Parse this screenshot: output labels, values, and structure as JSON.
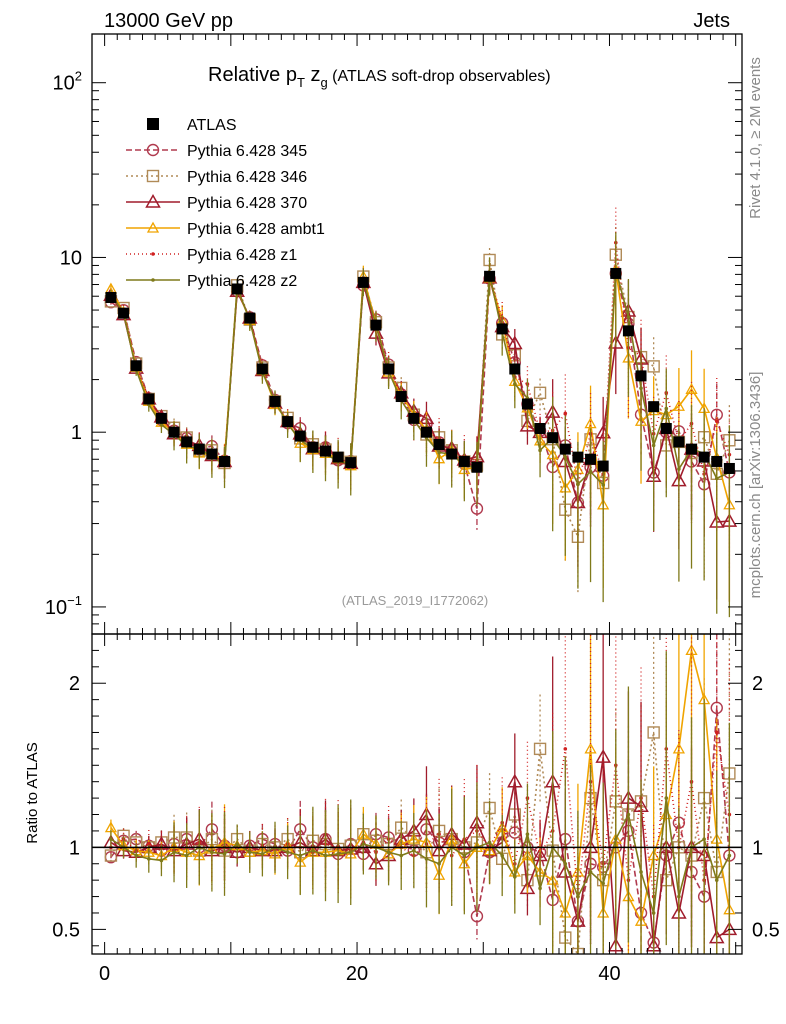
{
  "header": {
    "left": "13000 GeV pp",
    "right": "Jets"
  },
  "side_labels": {
    "top": "Rivet 4.1.0, ≥ 2M events",
    "bottom": "mcplots.cern.ch [arXiv:1306.3436]"
  },
  "chart_data": {
    "type": "line",
    "title": "Relative p_T z_g (ATLAS soft-drop observables)",
    "title_parts": {
      "pre": "Relative p",
      "sub1": "T",
      "mid": " z",
      "sub2": "g",
      "post": " (ATLAS soft-drop observables)"
    },
    "reference": "(ATLAS_2019_I1772062)",
    "x": [
      0.5,
      1.5,
      2.5,
      3.5,
      4.5,
      5.5,
      6.5,
      7.5,
      8.5,
      9.5,
      10.5,
      11.5,
      12.5,
      13.5,
      14.5,
      15.5,
      16.5,
      17.5,
      18.5,
      19.5,
      20.5,
      21.5,
      22.5,
      23.5,
      24.5,
      25.5,
      26.5,
      27.5,
      28.5,
      29.5,
      30.5,
      31.5,
      32.5,
      33.5,
      34.5,
      35.5,
      36.5,
      37.5,
      38.5,
      39.5,
      40.5,
      41.5,
      42.5,
      43.5,
      44.5,
      45.5,
      46.5,
      47.5,
      48.5,
      49.5
    ],
    "xlim": [
      -1,
      50.5
    ],
    "ylim": [
      0.07,
      190
    ],
    "yscale": "log",
    "ratio_ylim": [
      0.35,
      2.3
    ],
    "ratio_ylabel": "Ratio to ATLAS",
    "x_ticks": [
      "0",
      "20",
      "40"
    ],
    "y_ticks": [
      "10−1",
      "1",
      "10",
      "102"
    ],
    "ratio_ticks": [
      "0.5",
      "1",
      "2"
    ],
    "legend_position": "top-left",
    "data_series": {
      "name": "ATLAS",
      "color": "#000000",
      "values": [
        5.9,
        4.8,
        2.4,
        1.55,
        1.2,
        1.0,
        0.88,
        0.8,
        0.75,
        0.68,
        6.6,
        4.5,
        2.3,
        1.5,
        1.15,
        0.95,
        0.82,
        0.78,
        0.72,
        0.67,
        7.2,
        4.1,
        2.3,
        1.6,
        1.2,
        1.0,
        0.85,
        0.75,
        0.68,
        0.63,
        7.8,
        3.9,
        2.3,
        1.45,
        1.05,
        0.93,
        0.8,
        0.72,
        0.7,
        0.64,
        8.1,
        3.8,
        2.1,
        1.4,
        1.05,
        0.88,
        0.8,
        0.72,
        0.68,
        0.62
      ]
    },
    "series": [
      {
        "name": "Pythia 6.428 345",
        "color": "#b03a4e",
        "dash": "6,3",
        "marker": "circle",
        "ratios": [
          0.94,
          1.04,
          1.05,
          1.01,
          0.98,
          1.02,
          1.05,
          1.0,
          1.11,
          1.01,
          0.97,
          1.01,
          1.05,
          1.02,
          0.98,
          1.11,
          1.0,
          1.05,
          0.96,
          1.02,
          0.96,
          1.08,
          1.06,
          1.03,
          0.98,
          1.11,
          1.03,
          1.04,
          0.97,
          0.58,
          0.97,
          1.08,
          1.09,
          1.0,
          0.97,
          0.68,
          1.05,
          0.55,
          0.9,
          0.88,
          1.0,
          1.1,
          0.6,
          0.42,
          0.95,
          1.15,
          0.85,
          0.7,
          1.85,
          0.95
        ]
      },
      {
        "name": "Pythia 6.428 346",
        "color": "#b08a57",
        "dash": "2,3",
        "marker": "square",
        "ratios": [
          0.95,
          1.07,
          1.03,
          1.0,
          1.03,
          1.06,
          1.06,
          0.98,
          1.05,
          0.98,
          1.05,
          0.98,
          1.02,
          1.0,
          1.05,
          0.97,
          1.04,
          1.02,
          0.99,
          1.01,
          1.08,
          1.04,
          1.02,
          1.12,
          1.05,
          0.97,
          1.1,
          1.05,
          1.0,
          1.03,
          1.24,
          0.93,
          1.2,
          0.8,
          1.6,
          0.98,
          0.45,
          0.35,
          1.3,
          0.8,
          1.28,
          1.2,
          1.28,
          1.7,
          0.8,
          1.0,
          0.95,
          1.3,
          0.85,
          1.45
        ]
      },
      {
        "name": "Pythia 6.428 370",
        "color": "#a01c2c",
        "dash": "none",
        "marker": "triangle",
        "ratios": [
          1.03,
          0.98,
          0.97,
          1.0,
          1.02,
          0.98,
          1.02,
          1.05,
          0.98,
          1.0,
          0.97,
          1.0,
          0.98,
          0.98,
          1.0,
          1.03,
          0.98,
          1.05,
          0.98,
          0.99,
          1.0,
          0.9,
          0.95,
          1.05,
          1.1,
          1.2,
          0.98,
          1.08,
          1.02,
          1.15,
          0.98,
          1.03,
          1.4,
          0.75,
          0.95,
          1.4,
          0.85,
          0.55,
          1.0,
          1.55,
          0.4,
          1.3,
          1.25,
          0.4,
          1.0,
          0.6,
          1.0,
          0.95,
          0.45,
          0.5
        ]
      },
      {
        "name": "Pythia 6.428 ambt1",
        "color": "#f0a400",
        "dash": "none",
        "marker": "triangle-open",
        "ratios": [
          1.12,
          1.01,
          0.98,
          0.97,
          0.95,
          1.0,
          0.97,
          0.95,
          0.99,
          1.03,
          1.01,
          0.97,
          0.98,
          0.96,
          1.01,
          0.91,
          0.97,
          0.97,
          0.98,
          0.96,
          1.08,
          1.02,
          0.96,
          1.02,
          1.05,
          1.03,
          0.83,
          1.05,
          0.9,
          1.0,
          0.98,
          1.12,
          0.85,
          0.95,
          0.85,
          0.8,
          0.6,
          0.85,
          1.6,
          0.6,
          1.05,
          0.7,
          0.55,
          0.95,
          1.2,
          1.6,
          2.2,
          1.9,
          1.05,
          0.62
        ]
      },
      {
        "name": "Pythia 6.428 z1",
        "color": "#d02020",
        "dash": "1,3",
        "marker": "dot",
        "ratios": [
          1.0,
          1.05,
          0.98,
          1.02,
          1.0,
          0.98,
          1.0,
          1.03,
          0.97,
          1.0,
          1.02,
          0.98,
          1.01,
          0.99,
          1.02,
          1.0,
          0.97,
          1.02,
          1.0,
          0.98,
          1.03,
          0.97,
          1.05,
          1.0,
          0.95,
          1.02,
          1.08,
          0.95,
          1.05,
          1.1,
          1.0,
          1.15,
          0.9,
          1.3,
          0.95,
          1.1,
          1.6,
          0.7,
          1.4,
          0.9,
          1.5,
          0.8,
          1.3,
          0.7,
          1.6,
          1.0,
          1.4,
          0.8,
          1.7,
          1.2
        ]
      },
      {
        "name": "Pythia 6.428 z2",
        "color": "#7f7a1a",
        "dash": "none",
        "marker": "dot",
        "ratios": [
          1.05,
          1.0,
          0.95,
          0.93,
          0.92,
          0.97,
          0.95,
          1.0,
          0.97,
          0.96,
          1.02,
          0.97,
          0.96,
          1.0,
          0.97,
          0.95,
          0.98,
          0.95,
          0.96,
          0.97,
          1.02,
          1.0,
          0.97,
          0.95,
          0.98,
          0.93,
          0.9,
          1.0,
          0.95,
          1.0,
          1.03,
          0.95,
          0.82,
          1.08,
          0.75,
          1.0,
          0.9,
          0.7,
          0.85,
          0.78,
          1.05,
          1.2,
          0.85,
          0.6,
          1.3,
          0.7,
          1.0,
          1.05,
          0.8,
          0.95
        ]
      }
    ]
  }
}
